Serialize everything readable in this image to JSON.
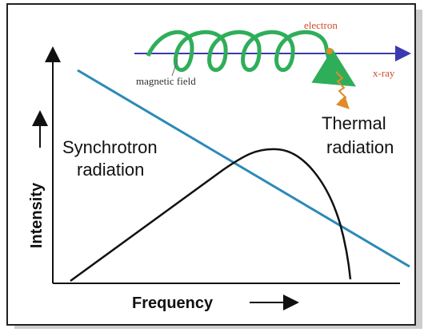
{
  "diagram": {
    "labels": {
      "electron": "electron",
      "magnetic_field": "magnetic field",
      "xray": "x-ray",
      "synchrotron": [
        "Synchrotron",
        "radiation"
      ],
      "thermal": [
        "Thermal",
        "radiation"
      ]
    },
    "axes": {
      "y": "Intensity",
      "x": "Frequency"
    }
  }
}
